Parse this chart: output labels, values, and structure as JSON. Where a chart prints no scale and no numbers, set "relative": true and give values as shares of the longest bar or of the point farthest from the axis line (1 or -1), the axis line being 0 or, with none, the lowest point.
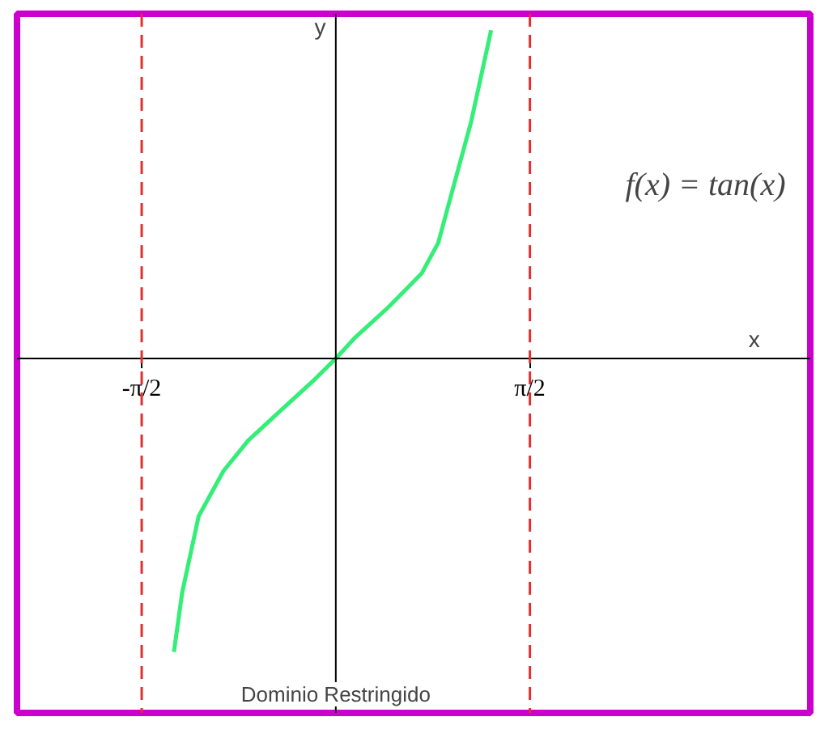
{
  "chart_data": {
    "type": "line",
    "relative": true,
    "xlabel": "x",
    "ylabel": "y",
    "xlim": [
      -2.58,
      3.84
    ],
    "xticks": [
      {
        "value": -1.5708,
        "label": "-π/2"
      },
      {
        "value": 1.5708,
        "label": "π/2"
      }
    ],
    "x": [
      -1.31,
      -1.243,
      -1.11,
      -0.909,
      -0.709,
      -0.441,
      -0.174,
      0,
      0.16,
      0.428,
      0.695,
      0.829,
      0.962,
      1.096,
      1.257
    ],
    "series": [
      {
        "color": "#33ee77",
        "values": [
          -0.894,
          -0.713,
          -0.481,
          -0.343,
          -0.25,
          -0.157,
          -0.065,
          0,
          0.065,
          0.157,
          0.259,
          0.352,
          0.537,
          0.722,
          1.0
        ]
      }
    ],
    "ref_lines": [
      {
        "axis": "x",
        "value": -1.5708,
        "color": "#e03030",
        "line_style": "dashed"
      },
      {
        "axis": "x",
        "value": 1.5708,
        "color": "#e03030",
        "line_style": "dashed"
      }
    ],
    "annotations": [
      "f(x) = tan(x)",
      "Dominio Restringido"
    ],
    "grid": false
  }
}
